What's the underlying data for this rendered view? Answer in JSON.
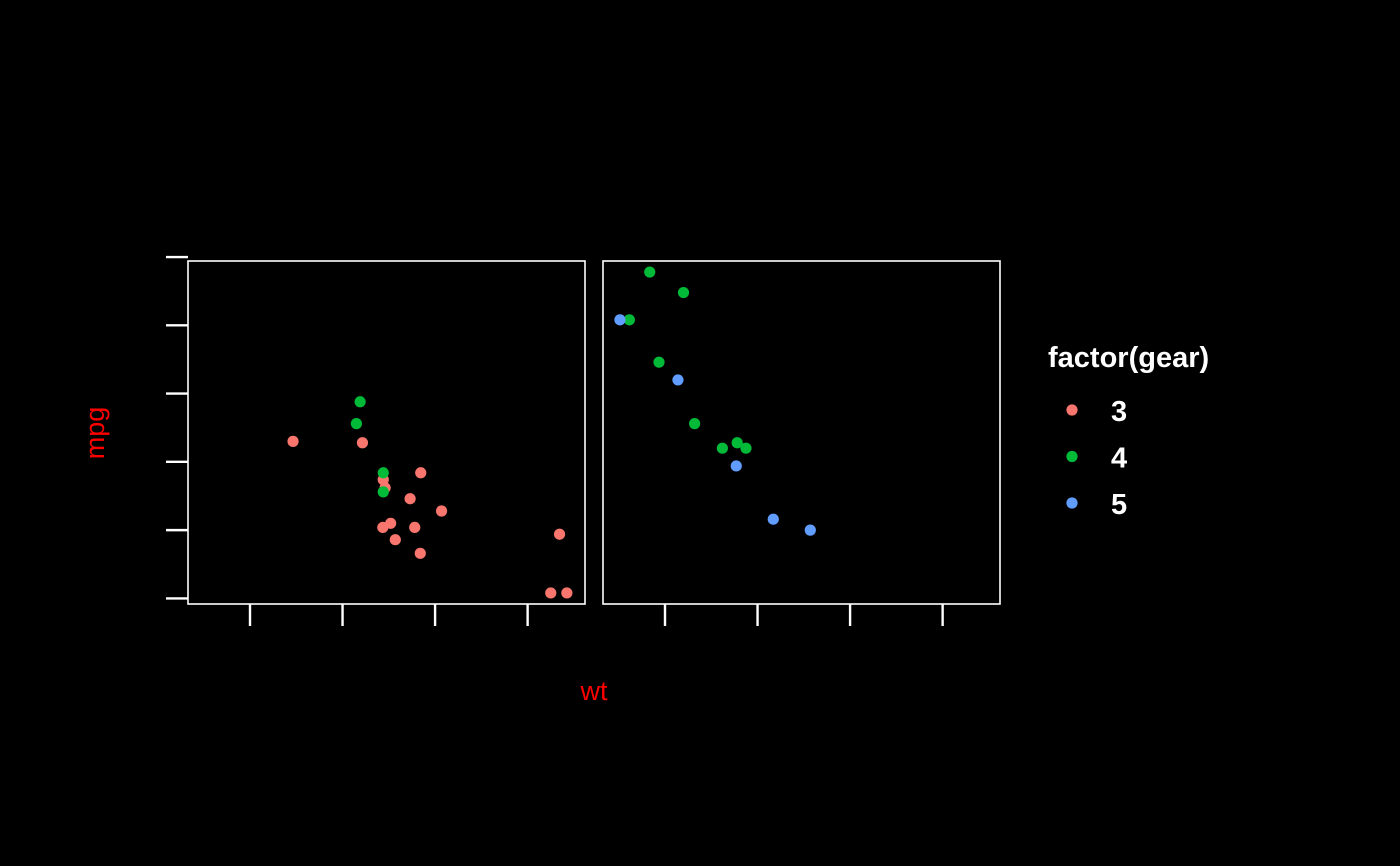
{
  "chart_data": {
    "type": "scatter",
    "facets": 2,
    "xlabel": "wt",
    "ylabel": "mpg",
    "axis_title_color": "#ff0000",
    "tick_labels_shown": false,
    "xlim": [
      1.33,
      5.62
    ],
    "ylim": [
      9.59,
      34.71
    ],
    "x_ticks": [
      2,
      3,
      4,
      5
    ],
    "y_ticks": [
      10,
      15,
      20,
      25,
      30,
      35
    ],
    "legend": {
      "title": "factor(gear)",
      "position": "right",
      "entries": [
        {
          "label": "3",
          "color": "#F8766D"
        },
        {
          "label": "4",
          "color": "#00BA38"
        },
        {
          "label": "5",
          "color": "#619CFF"
        }
      ]
    },
    "panels": [
      {
        "series": [
          {
            "name": "3",
            "color": "#F8766D",
            "points": [
              [
                2.465,
                21.5
              ],
              [
                3.215,
                21.4
              ],
              [
                3.44,
                18.7
              ],
              [
                3.46,
                18.1
              ],
              [
                3.57,
                14.3
              ],
              [
                4.07,
                16.4
              ],
              [
                3.73,
                17.3
              ],
              [
                3.78,
                15.2
              ],
              [
                5.25,
                10.4
              ],
              [
                5.424,
                10.4
              ],
              [
                5.345,
                14.7
              ],
              [
                3.52,
                15.5
              ],
              [
                3.435,
                15.2
              ],
              [
                3.84,
                13.3
              ],
              [
                3.845,
                19.2
              ]
            ]
          },
          {
            "name": "4",
            "color": "#00BA38",
            "points": [
              [
                3.19,
                24.4
              ],
              [
                3.15,
                22.8
              ],
              [
                3.44,
                19.2
              ],
              [
                3.44,
                17.8
              ]
            ]
          }
        ]
      },
      {
        "series": [
          {
            "name": "4",
            "color": "#00BA38",
            "points": [
              [
                2.62,
                21.0
              ],
              [
                2.875,
                21.0
              ],
              [
                2.32,
                22.8
              ],
              [
                2.2,
                32.4
              ],
              [
                1.615,
                30.4
              ],
              [
                1.835,
                33.9
              ],
              [
                1.935,
                27.3
              ],
              [
                2.78,
                21.4
              ]
            ]
          },
          {
            "name": "5",
            "color": "#619CFF",
            "points": [
              [
                2.14,
                26.0
              ],
              [
                1.513,
                30.4
              ],
              [
                3.17,
                15.8
              ],
              [
                2.77,
                19.7
              ],
              [
                3.57,
                15.0
              ]
            ]
          }
        ]
      }
    ]
  }
}
